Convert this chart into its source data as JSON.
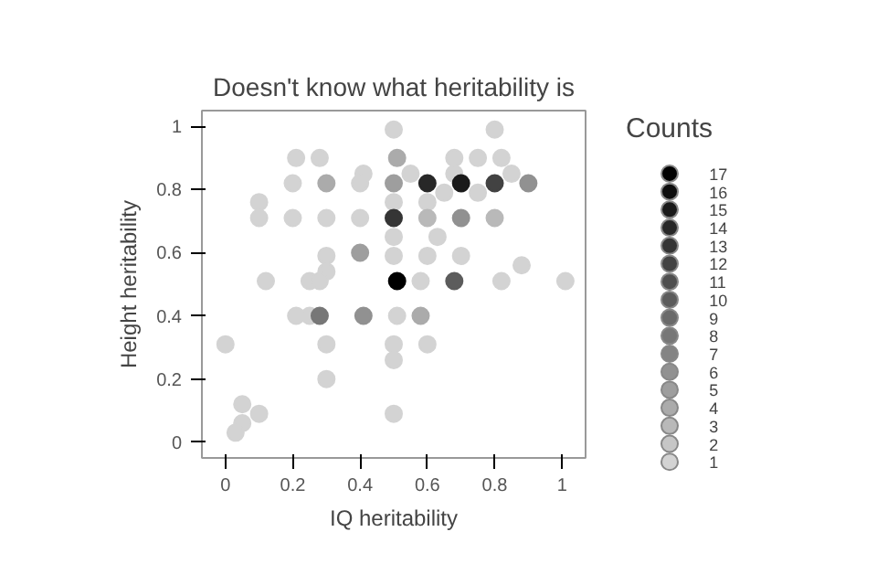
{
  "chart_data": {
    "type": "scatter",
    "title": "Doesn't know what heritability is",
    "xlabel": "IQ heritability",
    "ylabel": "Height heritability",
    "legend_title": "Counts",
    "marker": "circle",
    "xlim": [
      -0.07,
      1.07
    ],
    "ylim": [
      -0.05,
      1.05
    ],
    "xticks": [
      0,
      0.2,
      0.4,
      0.6,
      0.8,
      1
    ],
    "yticks": [
      0,
      0.2,
      0.4,
      0.6,
      0.8,
      1
    ],
    "grid": false,
    "clim": [
      1,
      17
    ],
    "cticks": [
      1,
      2,
      3,
      4,
      5,
      6,
      7,
      8,
      9,
      10,
      11,
      12,
      13,
      14,
      15,
      16,
      17
    ],
    "x": [
      0.5,
      0.21,
      0.28,
      0.51,
      0.68,
      0.75,
      0.82,
      0.8,
      0.41,
      0.55,
      0.68,
      0.85,
      0.1,
      0.2,
      0.3,
      0.4,
      0.5,
      0.6,
      0.7,
      0.8,
      0.9,
      0.65,
      0.75,
      0.5,
      0.6,
      0.1,
      0.2,
      0.3,
      0.4,
      0.5,
      0.6,
      0.7,
      0.8,
      0.5,
      0.63,
      0.3,
      0.4,
      0.5,
      0.6,
      0.7,
      0.3,
      0.12,
      0.25,
      0.28,
      0.51,
      0.58,
      0.68,
      0.82,
      0.88,
      1.01,
      0.21,
      0.25,
      0.28,
      0.41,
      0.51,
      0.58,
      0,
      0.3,
      0.5,
      0.6,
      0.5,
      0.3,
      0.5,
      0.05,
      0.05,
      0.03,
      0.1
    ],
    "values": [
      0.99,
      0.9,
      0.9,
      0.9,
      0.9,
      0.9,
      0.9,
      0.99,
      0.85,
      0.85,
      0.85,
      0.85,
      0.76,
      0.82,
      0.82,
      0.82,
      0.82,
      0.82,
      0.82,
      0.82,
      0.82,
      0.79,
      0.79,
      0.76,
      0.76,
      0.71,
      0.71,
      0.71,
      0.71,
      0.71,
      0.71,
      0.71,
      0.71,
      0.65,
      0.65,
      0.59,
      0.6,
      0.59,
      0.59,
      0.59,
      0.54,
      0.51,
      0.51,
      0.51,
      0.51,
      0.51,
      0.51,
      0.51,
      0.56,
      0.51,
      0.4,
      0.4,
      0.4,
      0.4,
      0.4,
      0.4,
      0.31,
      0.31,
      0.31,
      0.31,
      0.26,
      0.2,
      0.09,
      0.12,
      0.06,
      0.03,
      0.09
    ],
    "cvalues": [
      1,
      1,
      1,
      4,
      1,
      1,
      1,
      1,
      1,
      1,
      1,
      1,
      1,
      1,
      4,
      1,
      5,
      14,
      15,
      12,
      6,
      1,
      1,
      1,
      1,
      1,
      1,
      1,
      1,
      13,
      3,
      6,
      3,
      1,
      1,
      1,
      5,
      1,
      1,
      1,
      1,
      1,
      1,
      1,
      17,
      1,
      10,
      1,
      1,
      1,
      1,
      1,
      8,
      6,
      1,
      4,
      1,
      1,
      1,
      1,
      1,
      1,
      1,
      1,
      1,
      1,
      1
    ]
  }
}
